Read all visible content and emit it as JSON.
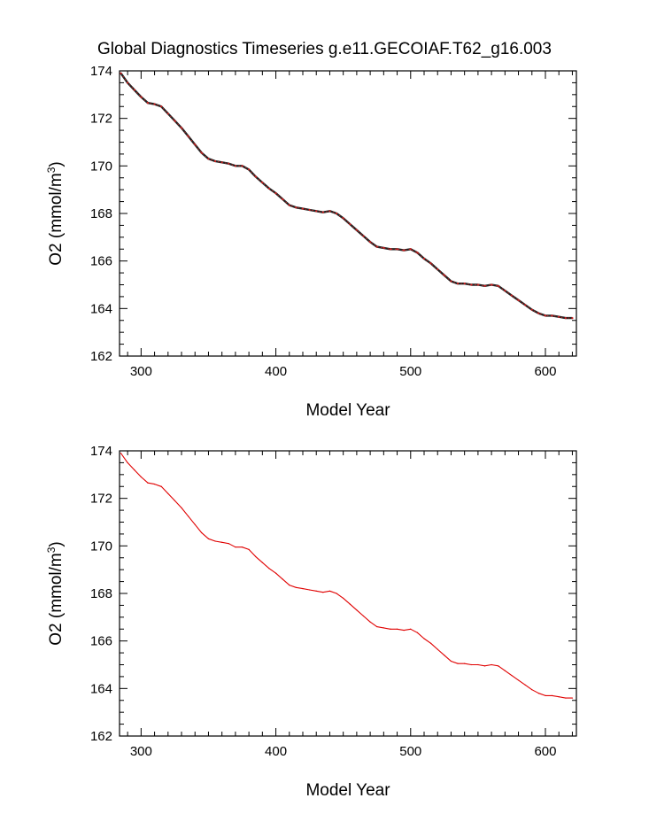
{
  "title": "Global Diagnostics Timeseries g.e11.GECOIAF.T62_g16.003",
  "colors": {
    "annual_line": "#222222",
    "annual_marks": "#d02020",
    "smooth_line": "#e00000",
    "frame": "#000000"
  },
  "chart_data": [
    {
      "type": "line",
      "xlabel": "Model Year",
      "ylabel": "O2 (mmol/m³)",
      "ylabel_base": "O2 (mmol/m",
      "ylabel_sup": "3",
      "ylabel_close": ")",
      "xlim": [
        284,
        623
      ],
      "ylim": [
        162,
        174
      ],
      "xticks": [
        "300",
        "400",
        "500",
        "600"
      ],
      "yticks": [
        "162",
        "164",
        "166",
        "168",
        "170",
        "172",
        "174"
      ],
      "series": [
        {
          "style": "black line with red markers",
          "x": [
            285,
            290,
            295,
            300,
            305,
            310,
            315,
            320,
            325,
            330,
            335,
            340,
            345,
            350,
            355,
            360,
            365,
            370,
            375,
            380,
            385,
            390,
            395,
            400,
            405,
            410,
            415,
            420,
            425,
            430,
            435,
            440,
            445,
            450,
            455,
            460,
            465,
            470,
            475,
            480,
            485,
            490,
            495,
            500,
            505,
            510,
            515,
            520,
            525,
            530,
            535,
            540,
            545,
            550,
            555,
            560,
            565,
            570,
            575,
            580,
            585,
            590,
            595,
            600,
            605,
            610,
            615,
            620
          ],
          "y": [
            173.9,
            173.5,
            173.2,
            172.9,
            172.65,
            172.6,
            172.5,
            172.2,
            171.9,
            171.6,
            171.25,
            170.9,
            170.55,
            170.3,
            170.2,
            170.15,
            170.1,
            170.0,
            170.0,
            169.85,
            169.55,
            169.3,
            169.05,
            168.85,
            168.6,
            168.35,
            168.25,
            168.2,
            168.15,
            168.1,
            168.05,
            168.1,
            168.0,
            167.8,
            167.55,
            167.3,
            167.05,
            166.8,
            166.6,
            166.55,
            166.5,
            166.5,
            166.45,
            166.5,
            166.35,
            166.1,
            165.9,
            165.65,
            165.4,
            165.15,
            165.05,
            165.05,
            165.0,
            165.0,
            164.95,
            165.0,
            164.95,
            164.75,
            164.55,
            164.35,
            164.15,
            163.95,
            163.8,
            163.7,
            163.7,
            163.65,
            163.6,
            163.6
          ]
        }
      ]
    },
    {
      "type": "line",
      "xlabel": "Model Year",
      "ylabel": "O2 (mmol/m³)",
      "ylabel_base": "O2 (mmol/m",
      "ylabel_sup": "3",
      "ylabel_close": ")",
      "xlim": [
        284,
        623
      ],
      "ylim": [
        162,
        174
      ],
      "xticks": [
        "300",
        "400",
        "500",
        "600"
      ],
      "yticks": [
        "162",
        "164",
        "166",
        "168",
        "170",
        "172",
        "174"
      ],
      "series": [
        {
          "style": "red line",
          "x": [
            285,
            290,
            295,
            300,
            305,
            310,
            315,
            320,
            325,
            330,
            335,
            340,
            345,
            350,
            355,
            360,
            365,
            370,
            375,
            380,
            385,
            390,
            395,
            400,
            405,
            410,
            415,
            420,
            425,
            430,
            435,
            440,
            445,
            450,
            455,
            460,
            465,
            470,
            475,
            480,
            485,
            490,
            495,
            500,
            505,
            510,
            515,
            520,
            525,
            530,
            535,
            540,
            545,
            550,
            555,
            560,
            565,
            570,
            575,
            580,
            585,
            590,
            595,
            600,
            605,
            610,
            615,
            620
          ],
          "y": [
            173.9,
            173.5,
            173.2,
            172.9,
            172.65,
            172.6,
            172.5,
            172.2,
            171.9,
            171.6,
            171.25,
            170.9,
            170.55,
            170.3,
            170.2,
            170.15,
            170.1,
            169.95,
            169.95,
            169.85,
            169.55,
            169.3,
            169.05,
            168.85,
            168.6,
            168.35,
            168.25,
            168.2,
            168.15,
            168.1,
            168.05,
            168.1,
            168.0,
            167.8,
            167.55,
            167.3,
            167.05,
            166.8,
            166.6,
            166.55,
            166.5,
            166.5,
            166.45,
            166.5,
            166.35,
            166.1,
            165.9,
            165.65,
            165.4,
            165.15,
            165.05,
            165.05,
            165.0,
            165.0,
            164.95,
            165.0,
            164.95,
            164.75,
            164.55,
            164.35,
            164.15,
            163.95,
            163.8,
            163.7,
            163.7,
            163.65,
            163.6,
            163.6
          ]
        }
      ]
    }
  ]
}
